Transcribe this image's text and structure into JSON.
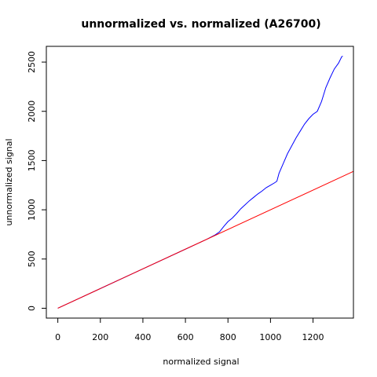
{
  "chart_data": {
    "type": "line",
    "title": "unnormalized vs. normalized (A26700)",
    "xlabel": "normalized signal",
    "ylabel": "unnormalized signal",
    "xlim": [
      -54,
      1390
    ],
    "ylim": [
      -100,
      2660
    ],
    "x_ticks": [
      0,
      200,
      400,
      600,
      800,
      1000,
      1200
    ],
    "y_ticks": [
      0,
      500,
      1000,
      1500,
      2000,
      2500
    ],
    "grid": false,
    "legend": "none",
    "series": [
      {
        "color": "#0000ff",
        "points": [
          [
            0,
            0
          ],
          [
            200,
            200
          ],
          [
            400,
            400
          ],
          [
            600,
            600
          ],
          [
            700,
            700
          ],
          [
            740,
            745
          ],
          [
            760,
            775
          ],
          [
            780,
            830
          ],
          [
            800,
            880
          ],
          [
            820,
            915
          ],
          [
            840,
            960
          ],
          [
            860,
            1010
          ],
          [
            880,
            1050
          ],
          [
            900,
            1090
          ],
          [
            920,
            1125
          ],
          [
            940,
            1160
          ],
          [
            960,
            1190
          ],
          [
            980,
            1225
          ],
          [
            1000,
            1250
          ],
          [
            1020,
            1275
          ],
          [
            1030,
            1290
          ],
          [
            1040,
            1370
          ],
          [
            1060,
            1470
          ],
          [
            1080,
            1570
          ],
          [
            1100,
            1650
          ],
          [
            1120,
            1730
          ],
          [
            1140,
            1800
          ],
          [
            1160,
            1870
          ],
          [
            1180,
            1925
          ],
          [
            1200,
            1970
          ],
          [
            1220,
            2000
          ],
          [
            1240,
            2100
          ],
          [
            1260,
            2240
          ],
          [
            1280,
            2340
          ],
          [
            1300,
            2430
          ],
          [
            1320,
            2490
          ],
          [
            1335,
            2555
          ],
          [
            1340,
            2560
          ]
        ]
      },
      {
        "color": "#ff0000",
        "points": [
          [
            0,
            0
          ],
          [
            1390,
            1390
          ]
        ]
      }
    ]
  }
}
